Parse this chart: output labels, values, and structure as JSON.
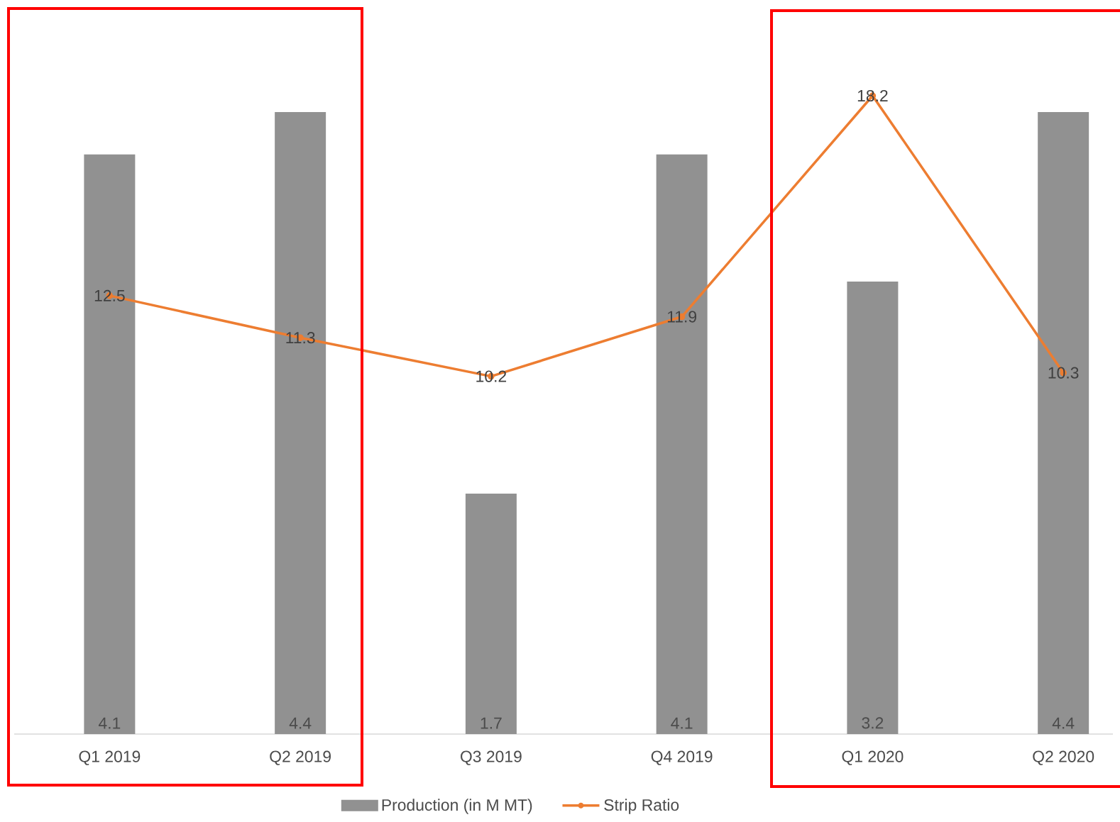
{
  "chart_data": {
    "type": "bar",
    "categories": [
      "Q1 2019",
      "Q2 2019",
      "Q3 2019",
      "Q4 2019",
      "Q1 2020",
      "Q2 2020"
    ],
    "series": [
      {
        "name": "Production (in M MT)",
        "color": "#919191",
        "values": [
          4.1,
          4.4,
          1.7,
          4.1,
          3.2,
          4.4
        ]
      },
      {
        "name": "Strip Ratio",
        "type": "line",
        "axis": "y2",
        "color": "#ed7d31",
        "marker": "circle",
        "values": [
          12.5,
          11.3,
          10.2,
          11.9,
          18.2,
          10.3
        ]
      }
    ],
    "data_labels": true,
    "legend": "bottom",
    "tick_labels": "x"
  }
}
